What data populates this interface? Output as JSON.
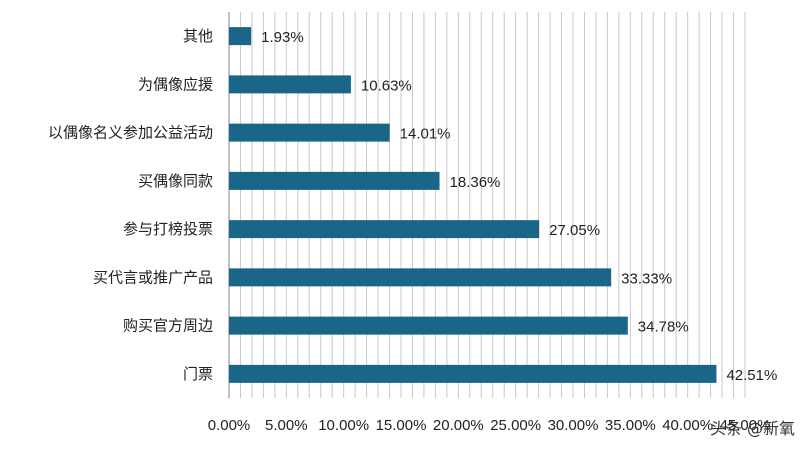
{
  "chart_data": {
    "type": "bar",
    "orientation": "horizontal",
    "categories": [
      "其他",
      "为偶像应援",
      "以偶像名义参加公益活动",
      "买偶像同款",
      "参与打榜投票",
      "买代言或推广产品",
      "购买官方周边",
      "门票"
    ],
    "values": [
      1.93,
      10.63,
      14.01,
      18.36,
      27.05,
      33.33,
      34.78,
      42.51
    ],
    "data_labels": [
      "1.93%",
      "10.63%",
      "14.01%",
      "18.36%",
      "27.05%",
      "33.33%",
      "34.78%",
      "42.51%"
    ],
    "x_ticks": [
      "0.00%",
      "5.00%",
      "10.00%",
      "15.00%",
      "20.00%",
      "25.00%",
      "30.00%",
      "35.00%",
      "40.00%",
      "45.00%"
    ],
    "xlim": [
      0,
      45
    ],
    "title": "",
    "xlabel": "",
    "ylabel": "",
    "grid": "vertical minor lines",
    "bar_color": "#1a6688",
    "grid_color": "#c8c8c8"
  },
  "watermark": {
    "text": "头条 @新氧"
  }
}
